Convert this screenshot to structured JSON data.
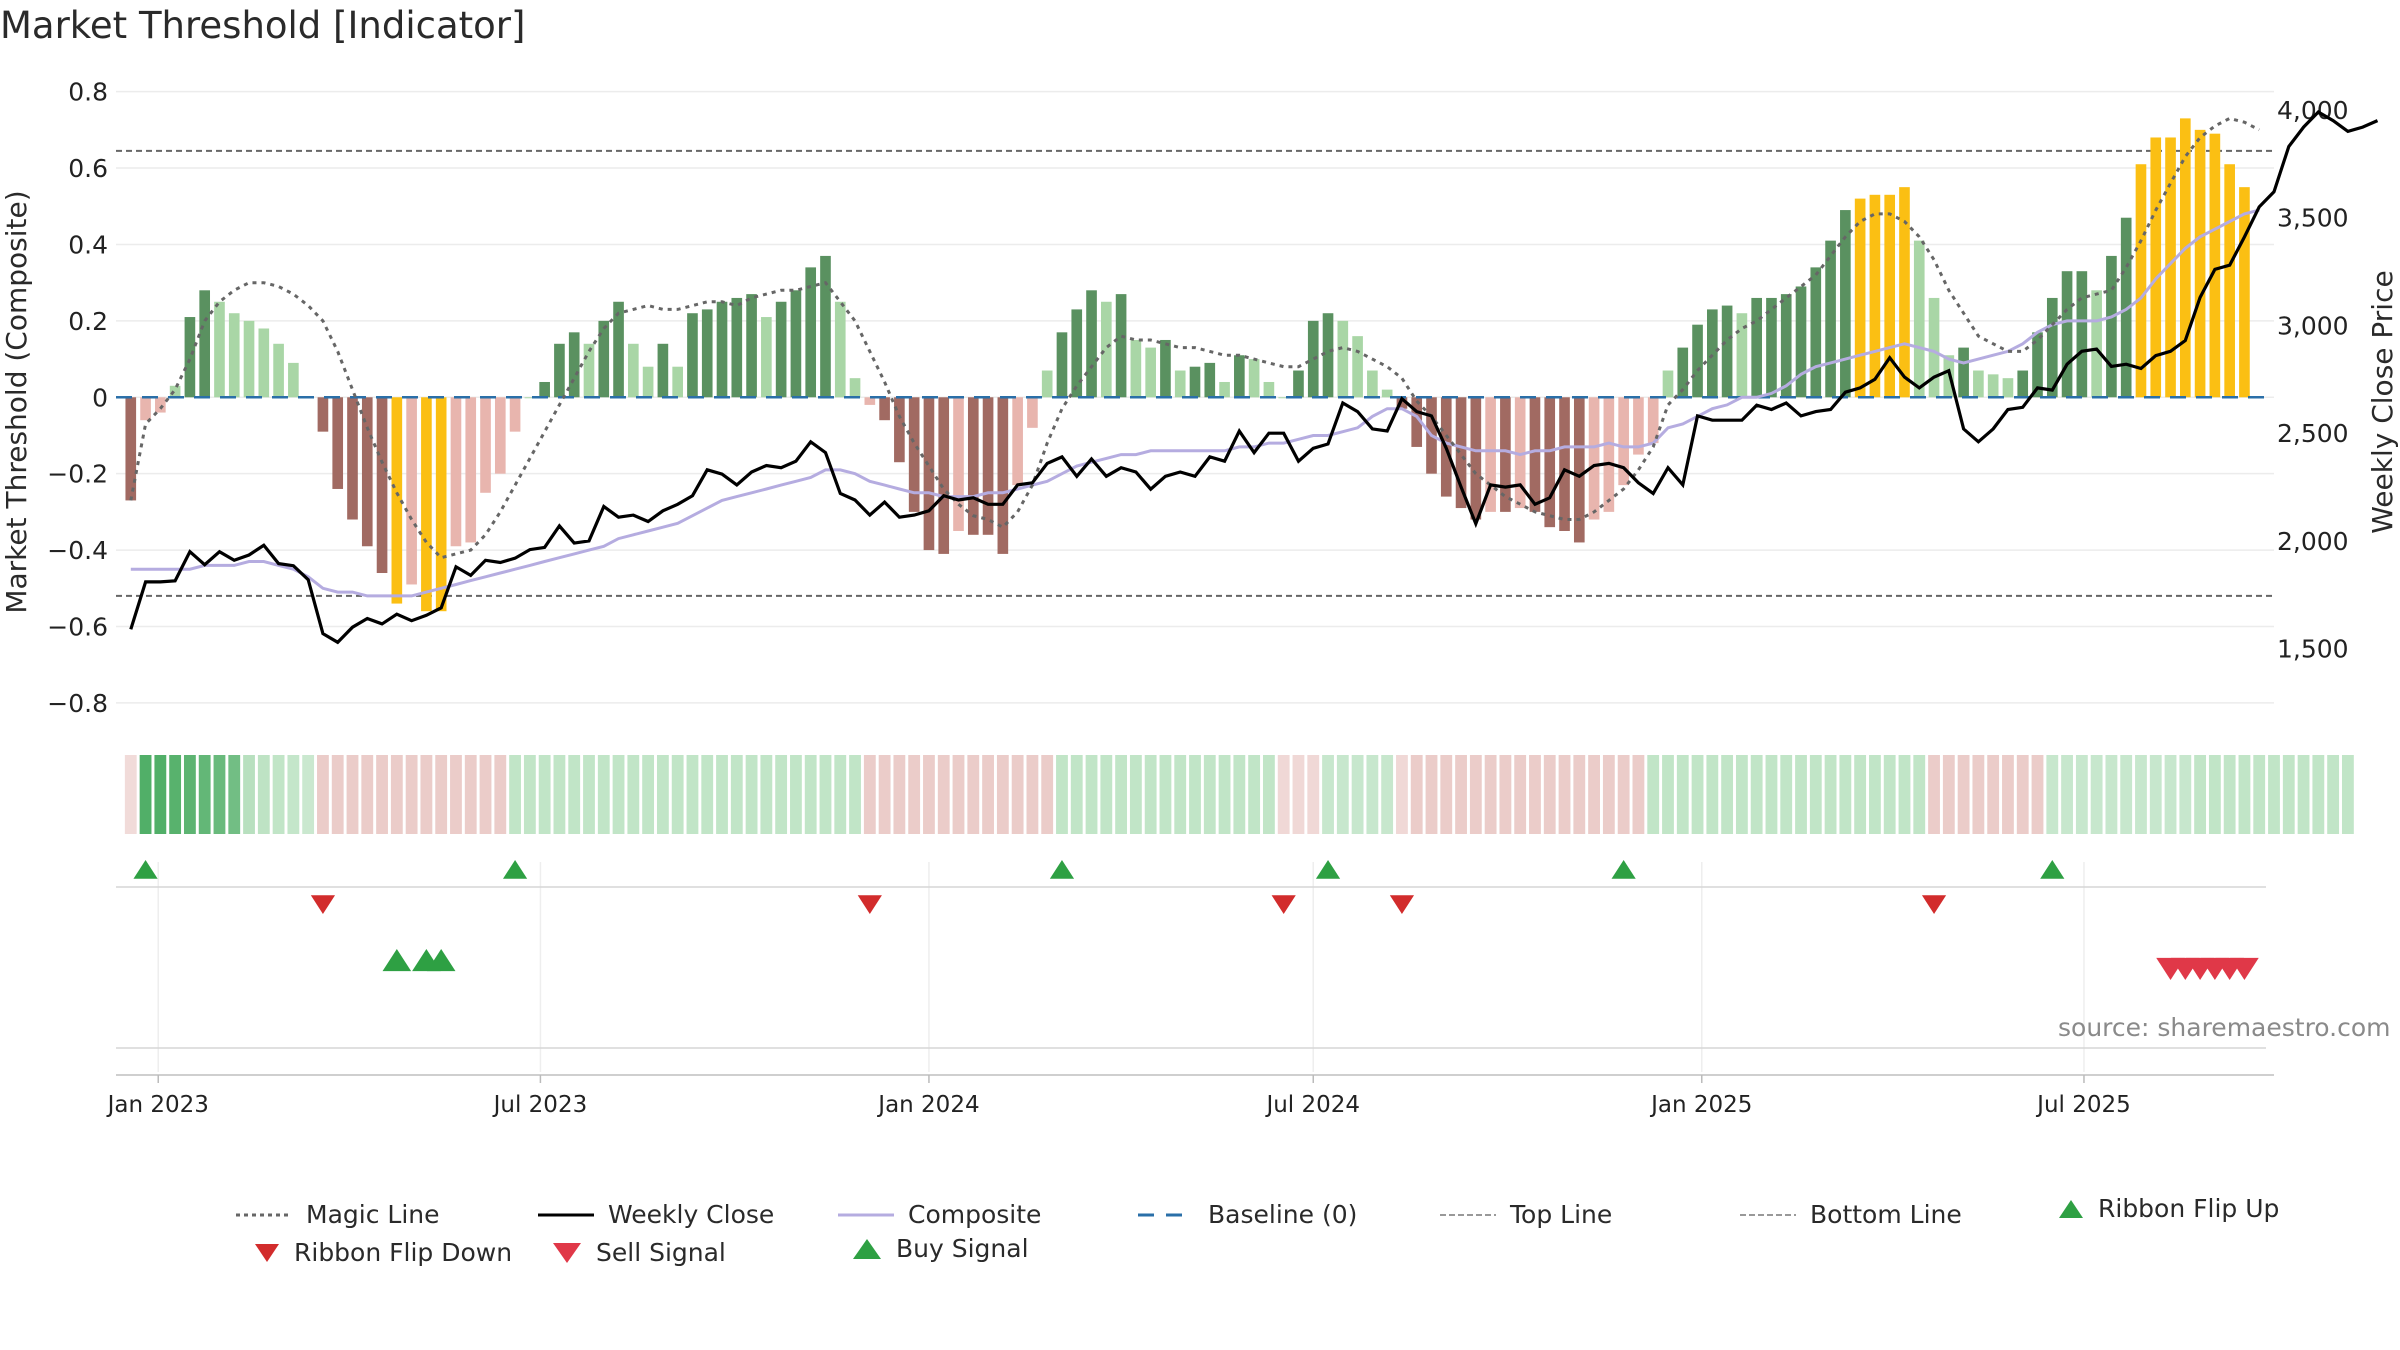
{
  "title": "Market Threshold [Indicator]",
  "source": "source: sharemaestro.com",
  "colors": {
    "pos_dark": "#5a9160",
    "pos_light": "#a9d6a6",
    "neg_dark": "#a16a62",
    "neg_light": "#e8b5ae",
    "extreme": "#fbbf13",
    "weekly": "#000000",
    "composite": "#b5ace0",
    "magic": "#666666",
    "baseline": "#2a6fa8",
    "ribbon_up": "#2ea043",
    "ribbon_down": "#d22c2c",
    "sell": "#e03848",
    "buy": "#2ea043"
  },
  "chart_data": {
    "type": "bar",
    "title": "Market Threshold [Indicator]",
    "xlabel": "",
    "ylabel": "Market Threshold (Composite)",
    "ylabel2": "Weekly Close Price",
    "ylim": [
      -0.85,
      0.82
    ],
    "ylim2": [
      1160,
      4120
    ],
    "xlim": [
      "2022-12-12",
      "2025-09-29"
    ],
    "yticks": [
      "0.8",
      "0.6",
      "0.4",
      "0.2",
      "0",
      "−0.2",
      "−0.4",
      "−0.6",
      "−0.8"
    ],
    "yticks2": [
      "4,000",
      "3,500",
      "3,000",
      "2,500",
      "2,000",
      "1,500"
    ],
    "xticks": [
      "Jan 2023",
      "Jul 2023",
      "Jan 2024",
      "Jul 2024",
      "Jan 2025",
      "Jul 2025"
    ],
    "top_line": 0.645,
    "bottom_line": -0.52,
    "baseline": 0,
    "bars": [
      -0.27,
      -0.06,
      -0.04,
      0.03,
      0.21,
      0.28,
      0.25,
      0.22,
      0.2,
      0.18,
      0.14,
      0.09,
      0.0,
      -0.09,
      -0.24,
      -0.32,
      -0.39,
      -0.46,
      -0.54,
      -0.49,
      -0.56,
      -0.56,
      -0.39,
      -0.38,
      -0.25,
      -0.2,
      -0.09,
      0.0,
      0.04,
      0.14,
      0.17,
      0.14,
      0.2,
      0.25,
      0.14,
      0.08,
      0.14,
      0.08,
      0.22,
      0.23,
      0.25,
      0.26,
      0.27,
      0.21,
      0.25,
      0.28,
      0.34,
      0.37,
      0.25,
      0.05,
      -0.02,
      -0.06,
      -0.17,
      -0.3,
      -0.4,
      -0.41,
      -0.35,
      -0.36,
      -0.36,
      -0.41,
      -0.23,
      -0.08,
      0.07,
      0.17,
      0.23,
      0.28,
      0.25,
      0.27,
      0.15,
      0.13,
      0.15,
      0.07,
      0.08,
      0.09,
      0.04,
      0.11,
      0.1,
      0.04,
      0.0,
      0.07,
      0.2,
      0.22,
      0.2,
      0.16,
      0.07,
      0.02,
      -0.03,
      -0.13,
      -0.2,
      -0.26,
      -0.29,
      -0.32,
      -0.3,
      -0.3,
      -0.29,
      -0.3,
      -0.34,
      -0.35,
      -0.38,
      -0.32,
      -0.3,
      -0.23,
      -0.15,
      -0.12,
      0.07,
      0.13,
      0.19,
      0.23,
      0.24,
      0.22,
      0.26,
      0.26,
      0.27,
      0.29,
      0.34,
      0.41,
      0.49,
      0.52,
      0.53,
      0.53,
      0.55,
      0.41,
      0.26,
      0.11,
      0.13,
      0.07,
      0.06,
      0.05,
      0.07,
      0.17,
      0.26,
      0.33,
      0.33,
      0.28,
      0.37,
      0.47,
      0.61,
      0.68,
      0.68,
      0.73,
      0.7,
      0.69,
      0.61,
      0.55
    ],
    "weekly_close": [
      1590,
      1810,
      1810,
      1815,
      1950,
      1890,
      1950,
      1910,
      1935,
      1980,
      1895,
      1885,
      1820,
      1570,
      1530,
      1600,
      1640,
      1615,
      1660,
      1630,
      1655,
      1690,
      1880,
      1840,
      1910,
      1900,
      1920,
      1960,
      1970,
      2070,
      1990,
      2000,
      2160,
      2110,
      2120,
      2090,
      2140,
      2170,
      2210,
      2330,
      2310,
      2260,
      2320,
      2350,
      2340,
      2370,
      2460,
      2410,
      2220,
      2190,
      2120,
      2180,
      2110,
      2120,
      2140,
      2210,
      2190,
      2200,
      2170,
      2170,
      2260,
      2270,
      2360,
      2390,
      2300,
      2380,
      2300,
      2340,
      2320,
      2240,
      2300,
      2320,
      2300,
      2390,
      2370,
      2510,
      2410,
      2500,
      2500,
      2370,
      2430,
      2450,
      2640,
      2600,
      2520,
      2510,
      2660,
      2600,
      2580,
      2430,
      2250,
      2080,
      2260,
      2250,
      2260,
      2170,
      2200,
      2330,
      2300,
      2350,
      2360,
      2340,
      2270,
      2220,
      2340,
      2260,
      2580,
      2560,
      2560,
      2560,
      2630,
      2610,
      2640,
      2580,
      2600,
      2610,
      2690,
      2710,
      2750,
      2850,
      2760,
      2710,
      2760,
      2790,
      2520,
      2460,
      2520,
      2610,
      2620,
      2710,
      2700,
      2820,
      2880,
      2890,
      2810,
      2820,
      2800,
      2860,
      2880,
      2930,
      3130,
      3260,
      3280,
      3410,
      3550,
      3620,
      3830,
      3920,
      3990,
      3950,
      3900,
      3920,
      3950
    ],
    "magic_line": [
      -0.27,
      -0.07,
      -0.03,
      0.02,
      0.1,
      0.2,
      0.25,
      0.28,
      0.3,
      0.3,
      0.29,
      0.27,
      0.24,
      0.2,
      0.12,
      0.02,
      -0.08,
      -0.17,
      -0.25,
      -0.32,
      -0.38,
      -0.42,
      -0.41,
      -0.4,
      -0.36,
      -0.3,
      -0.23,
      -0.16,
      -0.09,
      -0.02,
      0.05,
      0.12,
      0.18,
      0.22,
      0.23,
      0.24,
      0.23,
      0.23,
      0.24,
      0.25,
      0.25,
      0.24,
      0.26,
      0.27,
      0.28,
      0.28,
      0.29,
      0.3,
      0.25,
      0.2,
      0.12,
      0.04,
      -0.05,
      -0.12,
      -0.18,
      -0.24,
      -0.28,
      -0.31,
      -0.32,
      -0.34,
      -0.3,
      -0.23,
      -0.12,
      -0.03,
      0.03,
      0.08,
      0.13,
      0.16,
      0.15,
      0.15,
      0.14,
      0.13,
      0.13,
      0.12,
      0.11,
      0.11,
      0.1,
      0.09,
      0.08,
      0.08,
      0.1,
      0.12,
      0.13,
      0.12,
      0.1,
      0.08,
      0.05,
      -0.01,
      -0.05,
      -0.1,
      -0.15,
      -0.2,
      -0.23,
      -0.26,
      -0.28,
      -0.3,
      -0.31,
      -0.32,
      -0.32,
      -0.3,
      -0.27,
      -0.24,
      -0.19,
      -0.13,
      -0.02,
      0.02,
      0.07,
      0.11,
      0.15,
      0.18,
      0.2,
      0.23,
      0.26,
      0.29,
      0.32,
      0.37,
      0.42,
      0.46,
      0.48,
      0.48,
      0.46,
      0.42,
      0.36,
      0.28,
      0.22,
      0.16,
      0.14,
      0.12,
      0.12,
      0.15,
      0.19,
      0.23,
      0.26,
      0.27,
      0.28,
      0.34,
      0.41,
      0.49,
      0.56,
      0.63,
      0.68,
      0.71,
      0.73,
      0.72,
      0.7
    ],
    "composite": [
      -0.45,
      -0.45,
      -0.45,
      -0.45,
      -0.45,
      -0.44,
      -0.44,
      -0.44,
      -0.43,
      -0.43,
      -0.44,
      -0.45,
      -0.47,
      -0.5,
      -0.51,
      -0.51,
      -0.52,
      -0.52,
      -0.52,
      -0.52,
      -0.51,
      -0.5,
      -0.49,
      -0.48,
      -0.47,
      -0.46,
      -0.45,
      -0.44,
      -0.43,
      -0.42,
      -0.41,
      -0.4,
      -0.39,
      -0.37,
      -0.36,
      -0.35,
      -0.34,
      -0.33,
      -0.31,
      -0.29,
      -0.27,
      -0.26,
      -0.25,
      -0.24,
      -0.23,
      -0.22,
      -0.21,
      -0.19,
      -0.19,
      -0.2,
      -0.22,
      -0.23,
      -0.24,
      -0.25,
      -0.25,
      -0.26,
      -0.26,
      -0.26,
      -0.25,
      -0.25,
      -0.24,
      -0.23,
      -0.22,
      -0.2,
      -0.18,
      -0.17,
      -0.16,
      -0.15,
      -0.15,
      -0.14,
      -0.14,
      -0.14,
      -0.14,
      -0.14,
      -0.14,
      -0.13,
      -0.13,
      -0.12,
      -0.12,
      -0.11,
      -0.1,
      -0.1,
      -0.09,
      -0.08,
      -0.05,
      -0.03,
      -0.03,
      -0.05,
      -0.1,
      -0.12,
      -0.13,
      -0.14,
      -0.14,
      -0.14,
      -0.15,
      -0.14,
      -0.14,
      -0.13,
      -0.13,
      -0.13,
      -0.12,
      -0.13,
      -0.13,
      -0.12,
      -0.08,
      -0.07,
      -0.05,
      -0.03,
      -0.02,
      0.0,
      0.0,
      0.01,
      0.03,
      0.06,
      0.08,
      0.09,
      0.1,
      0.11,
      0.12,
      0.13,
      0.14,
      0.13,
      0.12,
      0.1,
      0.09,
      0.1,
      0.11,
      0.12,
      0.14,
      0.17,
      0.19,
      0.2,
      0.2,
      0.2,
      0.21,
      0.23,
      0.26,
      0.31,
      0.35,
      0.39,
      0.42,
      0.44,
      0.46,
      0.48,
      0.49
    ],
    "ribbon": [
      -0.15,
      0.9,
      0.9,
      0.85,
      0.8,
      0.75,
      0.7,
      0.62,
      0.55,
      0.45,
      0.4,
      0.35,
      0.25,
      -0.4,
      -0.4,
      -0.4,
      -0.4,
      -0.4,
      -0.4,
      -0.4,
      -0.4,
      -0.4,
      -0.4,
      -0.4,
      -0.4,
      -0.4,
      0.4,
      0.4,
      0.4,
      0.4,
      0.4,
      0.4,
      0.4,
      0.4,
      0.4,
      0.4,
      0.4,
      0.4,
      0.4,
      0.4,
      0.4,
      0.4,
      0.4,
      0.4,
      0.4,
      0.4,
      0.4,
      0.4,
      0.4,
      0.4,
      -0.4,
      -0.4,
      -0.4,
      -0.4,
      -0.4,
      -0.4,
      -0.4,
      -0.4,
      -0.4,
      -0.4,
      -0.4,
      -0.4,
      -0.4,
      0.4,
      0.4,
      0.4,
      0.4,
      0.4,
      0.4,
      0.4,
      0.4,
      0.4,
      0.4,
      0.4,
      0.4,
      0.4,
      0.4,
      0.4,
      -0.2,
      -0.2,
      -0.2,
      0.3,
      0.3,
      0.3,
      0.3,
      0.3,
      -0.2,
      -0.4,
      -0.4,
      -0.4,
      -0.4,
      -0.4,
      -0.4,
      -0.4,
      -0.4,
      -0.4,
      -0.4,
      -0.4,
      -0.4,
      -0.4,
      -0.4,
      -0.4,
      -0.4,
      0.4,
      0.4,
      0.4,
      0.4,
      0.4,
      0.4,
      0.4,
      0.4,
      0.4,
      0.4,
      0.4,
      0.4,
      0.4,
      0.4,
      0.4,
      0.4,
      0.4,
      0.4,
      0.4,
      -0.4,
      -0.4,
      -0.4,
      -0.4,
      -0.4,
      -0.4,
      -0.4,
      -0.4,
      0.3,
      0.3,
      0.3,
      0.3,
      0.3,
      0.3,
      0.3,
      0.3,
      0.3,
      0.3,
      0.4,
      0.4,
      0.4,
      0.4,
      0.4,
      0.4,
      0.4,
      0.4,
      0.4,
      0.4,
      0.4
    ],
    "ribbon_flip_up": [
      1,
      26,
      63,
      81,
      101,
      130
    ],
    "ribbon_flip_down": [
      13,
      50,
      78,
      86,
      122
    ],
    "buy_signal": [
      18,
      20,
      21
    ],
    "sell_signal": [
      138,
      139,
      140,
      141,
      142,
      143
    ]
  },
  "legend": [
    {
      "label": "Magic Line",
      "icon": "dotted-line-icon"
    },
    {
      "label": "Weekly Close",
      "icon": "solid-line-icon"
    },
    {
      "label": "Composite",
      "icon": "solid-line-icon"
    },
    {
      "label": "Baseline (0)",
      "icon": "dashed-line-icon"
    },
    {
      "label": "Top Line",
      "icon": "dotted-line-icon"
    },
    {
      "label": "Bottom Line",
      "icon": "dotted-line-icon"
    },
    {
      "label": "Ribbon Flip Up",
      "icon": "triangle-up-icon"
    },
    {
      "label": "Ribbon Flip Down",
      "icon": "triangle-down-icon"
    },
    {
      "label": "Sell Signal",
      "icon": "triangle-down-icon"
    },
    {
      "label": "Buy Signal",
      "icon": "triangle-up-icon"
    }
  ]
}
